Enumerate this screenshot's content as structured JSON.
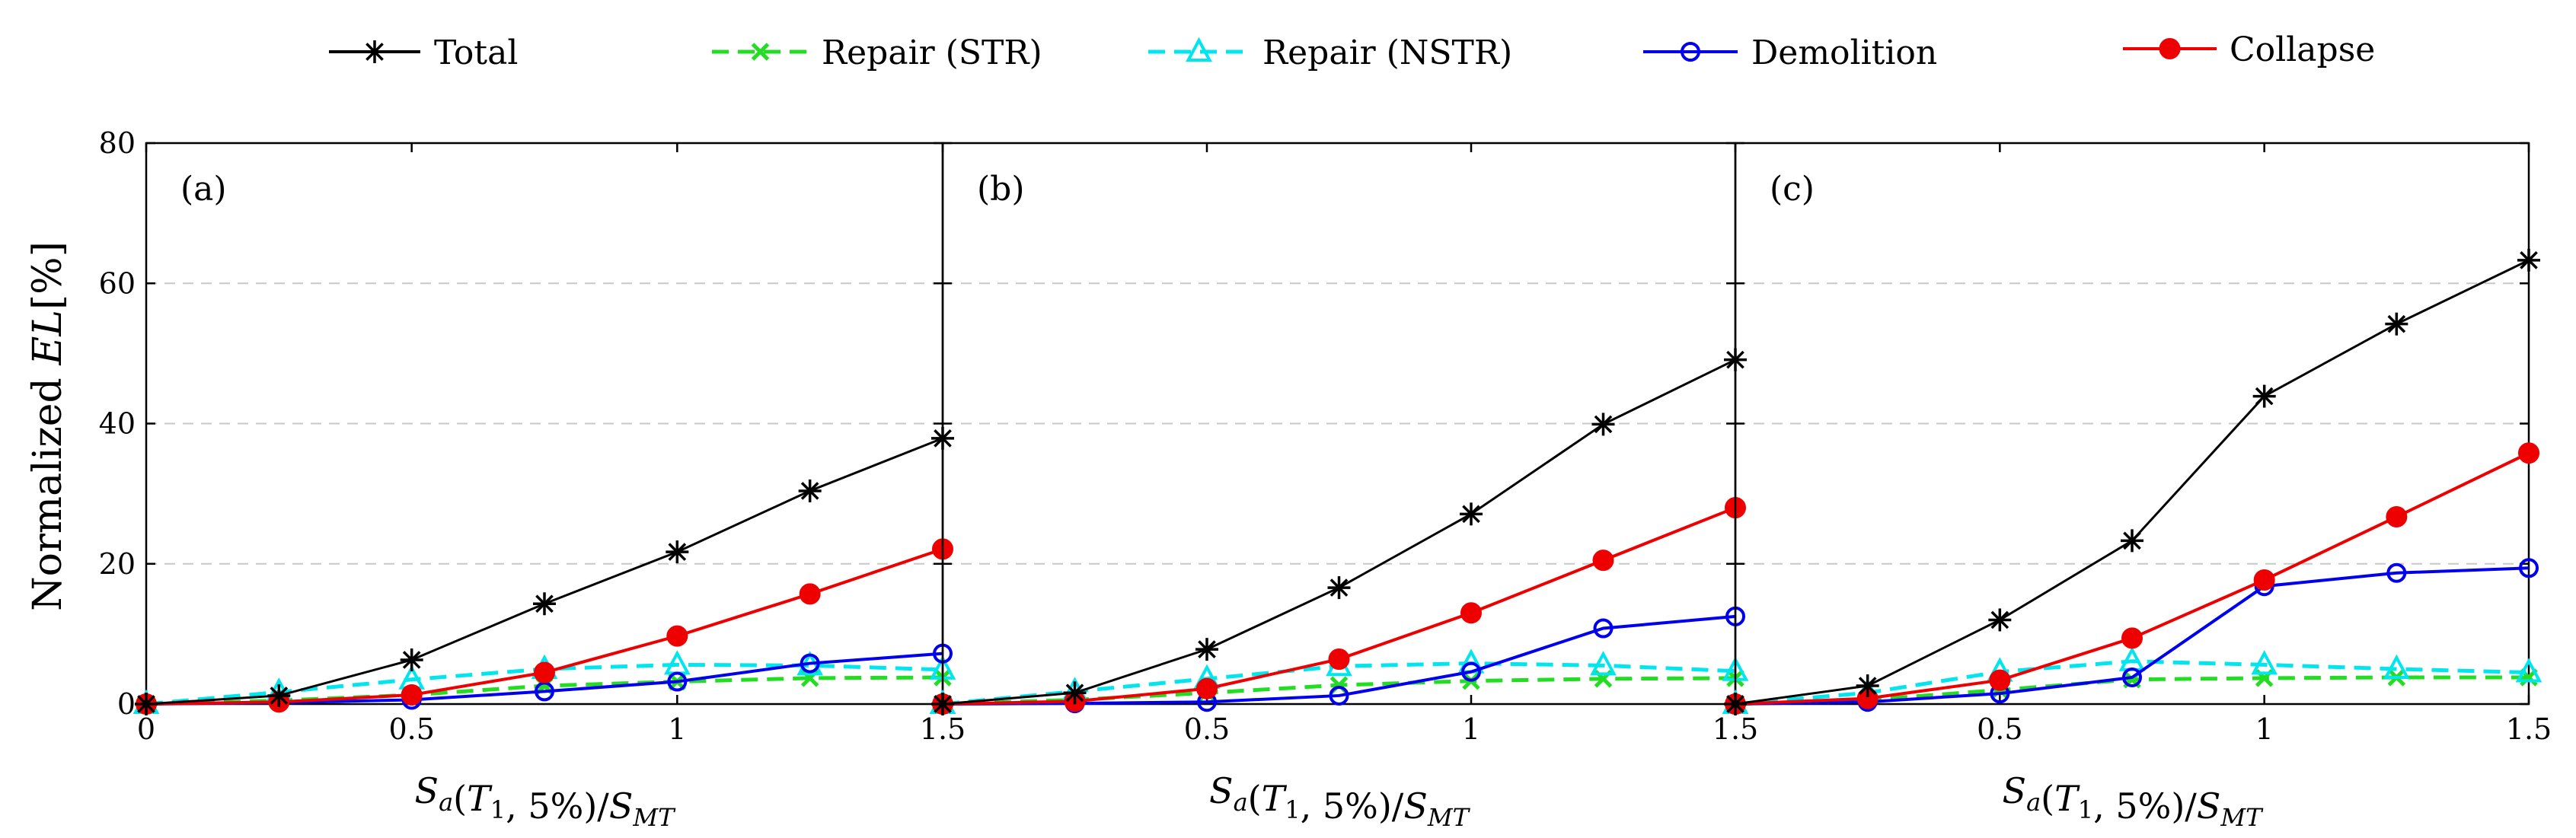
{
  "chart_data": {
    "type": "line",
    "ylabel": "Normalized EL[%]",
    "ylabel_prefix": "Normalized",
    "ylabel_var": "EL",
    "ylabel_unit": "[%]",
    "xlabel": "Sa(T1, 5%)/SMT",
    "xlabel_parts": {
      "S": "S",
      "a": "a",
      "open": "(",
      "T": "T",
      "one": "1",
      "mid": ", 5%)/",
      "S2": "S",
      "MT": "MT"
    },
    "ylim": [
      0,
      80
    ],
    "yticks": [
      0,
      20,
      40,
      60,
      80
    ],
    "ytick_labels": [
      "0",
      "20",
      "40",
      "60",
      "80"
    ],
    "xlim": [
      0,
      1.5
    ],
    "grid": "horizontal dashed",
    "legend_position": "top",
    "legend": [
      {
        "key": "total",
        "label": "Total",
        "color": "#000000",
        "marker": "asterisk",
        "dash": "solid"
      },
      {
        "key": "repair_str",
        "label": "Repair (STR)",
        "color": "#22dd22",
        "marker": "x",
        "dash": "dashed"
      },
      {
        "key": "repair_nstr",
        "label": "Repair (NSTR)",
        "color": "#00e5ee",
        "marker": "triangle",
        "dash": "dashed"
      },
      {
        "key": "demolition",
        "label": "Demolition",
        "color": "#0000ee",
        "marker": "circle-open",
        "dash": "solid"
      },
      {
        "key": "collapse",
        "label": "Collapse",
        "color": "#ee0000",
        "marker": "circle-filled",
        "dash": "solid"
      }
    ],
    "panels": [
      {
        "label": "(a)",
        "xticks": [
          0,
          0.5,
          1,
          1.5
        ],
        "xtick_labels": [
          "0",
          "0.5",
          "1",
          "1.5"
        ],
        "x": [
          0,
          0.25,
          0.5,
          0.75,
          1,
          1.25,
          1.5
        ],
        "series": {
          "repair_str": [
            0,
            0.5,
            1.3,
            2.6,
            3.2,
            3.7,
            3.8
          ],
          "repair_nstr": [
            0,
            1.7,
            3.5,
            5.0,
            5.6,
            5.5,
            4.9
          ],
          "demolition": [
            0,
            0.2,
            0.6,
            1.8,
            3.2,
            5.8,
            7.2
          ],
          "collapse": [
            0,
            0.3,
            1.3,
            4.5,
            9.7,
            15.7,
            22.1
          ],
          "total": [
            0,
            1.2,
            6.3,
            14.3,
            21.7,
            30.4,
            37.9
          ]
        },
        "endpoint_markers": [
          {
            "series": "repair_nstr",
            "x": 1.5,
            "y": 0
          },
          {
            "series": "repair_str",
            "x": 1.5,
            "y": 0
          },
          {
            "series": "demolition",
            "x": 1.5,
            "y": 0
          }
        ]
      },
      {
        "label": "(b)",
        "xticks": [
          0.5,
          1,
          1.5
        ],
        "xtick_labels": [
          "0.5",
          "1",
          "1.5"
        ],
        "x": [
          0,
          0.25,
          0.5,
          0.75,
          1,
          1.25,
          1.5
        ],
        "series": {
          "repair_str": [
            0,
            0.6,
            1.6,
            2.7,
            3.3,
            3.6,
            3.7
          ],
          "repair_nstr": [
            0,
            1.8,
            3.6,
            5.4,
            5.8,
            5.5,
            4.7
          ],
          "demolition": [
            0,
            0.1,
            0.3,
            1.2,
            4.6,
            10.8,
            12.5
          ],
          "collapse": [
            0,
            0.4,
            2.2,
            6.4,
            13.0,
            20.5,
            28.0
          ],
          "total": [
            0,
            1.6,
            7.8,
            16.6,
            27.1,
            39.9,
            49.1
          ]
        },
        "endpoint_markers": [
          {
            "series": "repair_nstr",
            "x": 1.5,
            "y": 0
          },
          {
            "series": "repair_str",
            "x": 1.5,
            "y": 0
          },
          {
            "series": "demolition",
            "x": 1.5,
            "y": 0
          }
        ]
      },
      {
        "label": "(c)",
        "xticks": [
          0.5,
          1,
          1.5
        ],
        "xtick_labels": [
          "0.5",
          "1",
          "1.5"
        ],
        "x": [
          0,
          0.25,
          0.5,
          0.75,
          1,
          1.25,
          1.5
        ],
        "series": {
          "repair_str": [
            0,
            0.6,
            2.0,
            3.5,
            3.7,
            3.8,
            3.8
          ],
          "repair_nstr": [
            0,
            1.6,
            4.6,
            6.1,
            5.6,
            5.0,
            4.5
          ],
          "demolition": [
            0,
            0.3,
            1.5,
            3.8,
            16.8,
            18.7,
            19.4
          ],
          "collapse": [
            0,
            0.8,
            3.4,
            9.4,
            17.7,
            26.7,
            35.8
          ],
          "total": [
            0,
            2.6,
            12.0,
            23.3,
            43.9,
            54.2,
            63.3
          ]
        },
        "endpoint_markers": []
      }
    ]
  }
}
